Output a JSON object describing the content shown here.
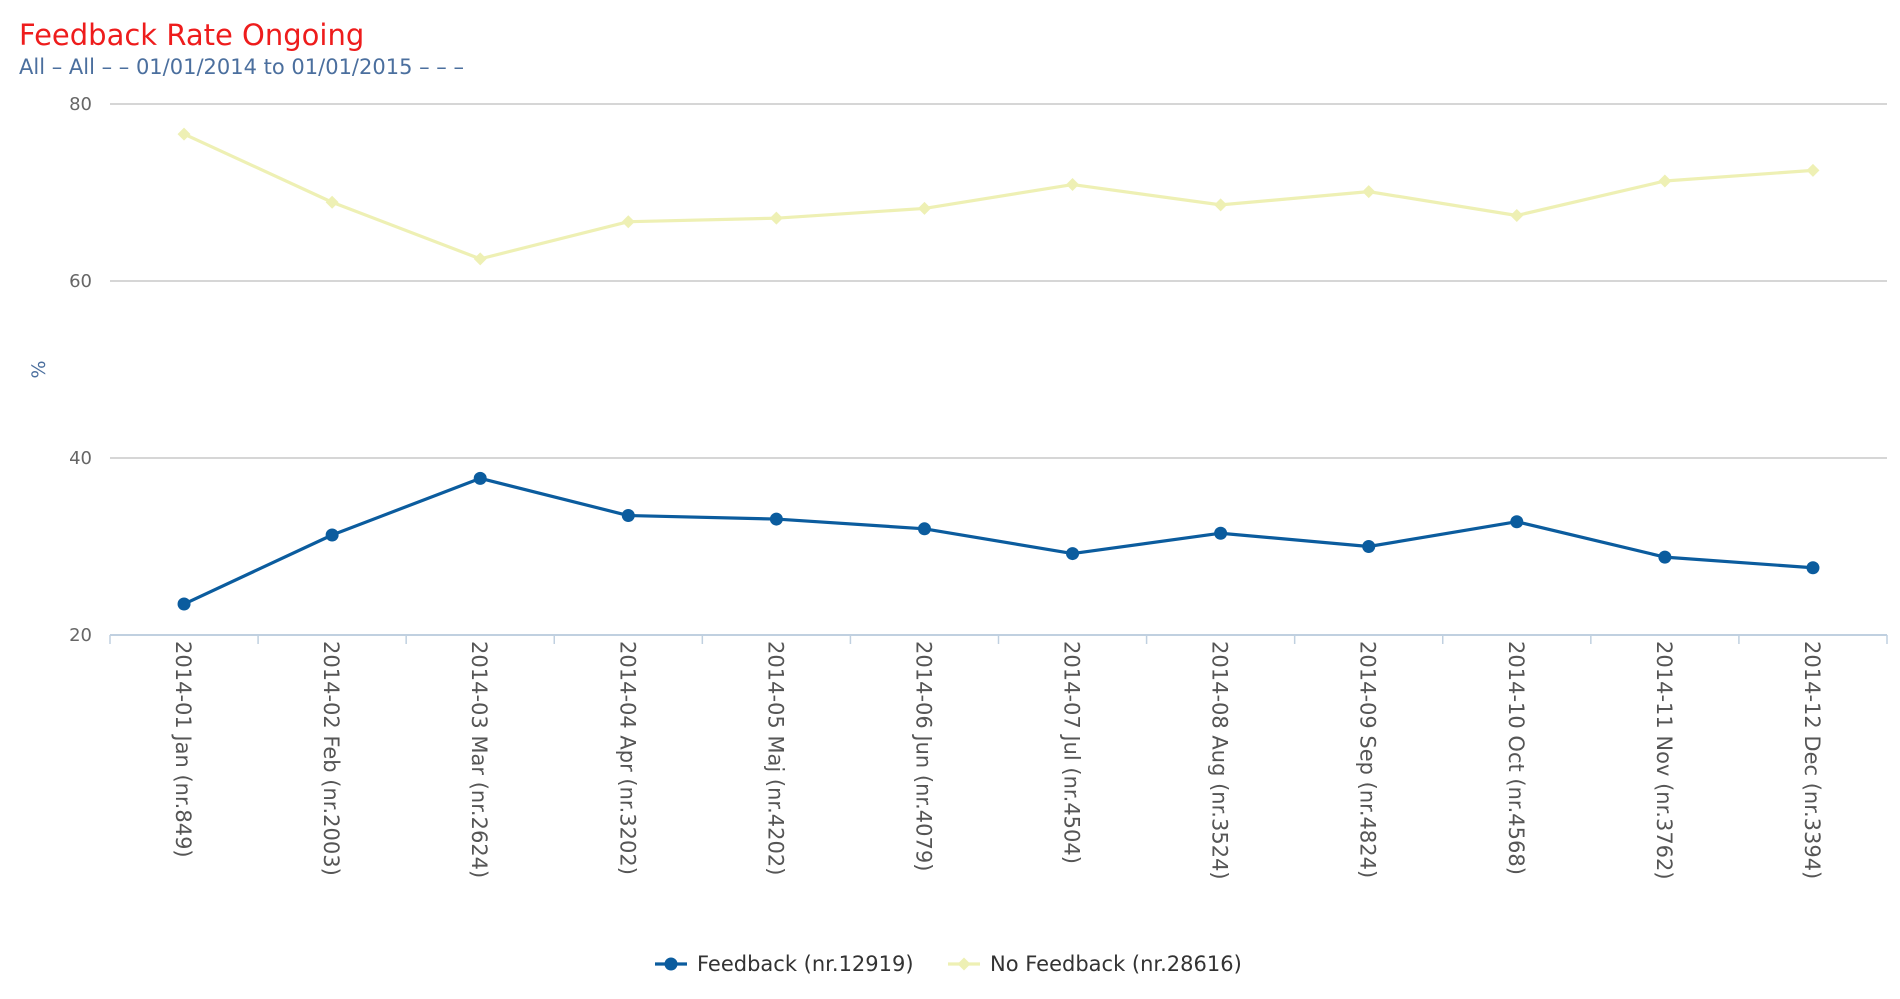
{
  "chart_data": {
    "type": "line",
    "title": "Feedback Rate Ongoing",
    "subtitle": "All – All – – 01/01/2014 to 01/01/2015 – – –",
    "ylabel": "%",
    "xlabel": "",
    "ylim": [
      20,
      80
    ],
    "yticks": [
      20,
      40,
      60,
      80
    ],
    "grid": true,
    "legend_position": "bottom",
    "categories": [
      "2014-01 Jan (nr.849)",
      "2014-02 Feb (nr.2003)",
      "2014-03 Mar (nr.2624)",
      "2014-04 Apr (nr.3202)",
      "2014-05 Maj (nr.4202)",
      "2014-06 Jun (nr.4079)",
      "2014-07 Jul (nr.4504)",
      "2014-08 Aug (nr.3524)",
      "2014-09 Sep (nr.4824)",
      "2014-10 Oct (nr.4568)",
      "2014-11 Nov (nr.3762)",
      "2014-12 Dec (nr.3394)"
    ],
    "series": [
      {
        "name": "Feedback (nr.12919)",
        "color": "#0b5c9e",
        "marker": "circle",
        "values": [
          23.5,
          31.3,
          37.7,
          33.5,
          33.1,
          32.0,
          29.2,
          31.5,
          30.0,
          32.8,
          28.8,
          27.6
        ]
      },
      {
        "name": "No Feedback (nr.28616)",
        "color": "#eef0b4",
        "marker": "diamond",
        "values": [
          76.6,
          68.9,
          62.5,
          66.7,
          67.1,
          68.2,
          70.9,
          68.6,
          70.1,
          67.4,
          71.3,
          72.5
        ]
      }
    ]
  }
}
